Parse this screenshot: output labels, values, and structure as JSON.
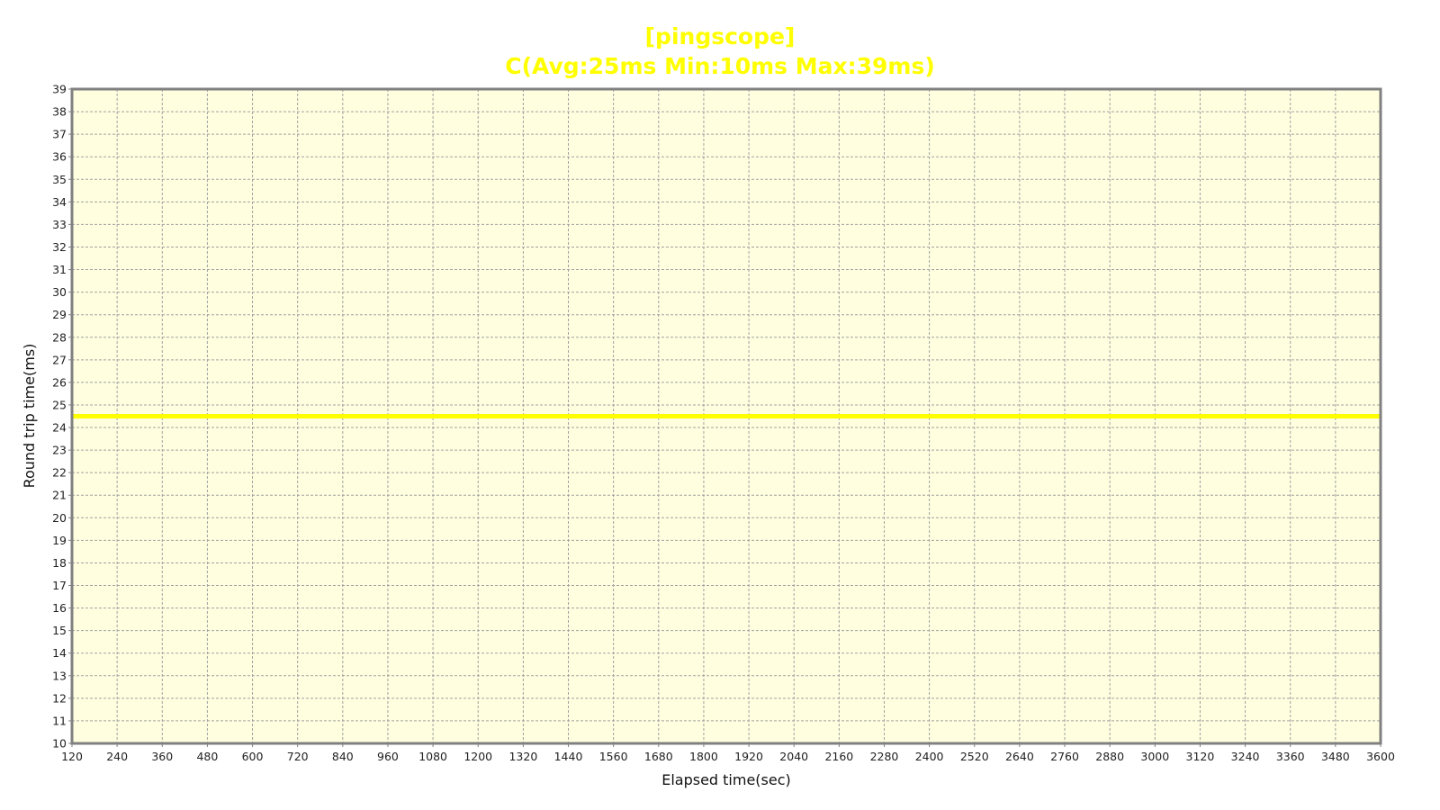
{
  "chart_data": {
    "type": "line",
    "title": "[pingscope]",
    "subtitle": "C(Avg:25ms Min:10ms Max:39ms)",
    "xlabel": "Elapsed time(sec)",
    "ylabel": "Round trip time(ms)",
    "xlim": [
      120,
      3600
    ],
    "ylim": [
      10,
      39
    ],
    "x_ticks": [
      "120",
      "240",
      "360",
      "480",
      "600",
      "720",
      "840",
      "960",
      "1080",
      "1200",
      "1320",
      "1440",
      "1560",
      "1680",
      "1800",
      "1920",
      "2040",
      "2160",
      "2280",
      "2400",
      "2520",
      "2640",
      "2760",
      "2880",
      "3000",
      "3120",
      "3240",
      "3360",
      "3480",
      "3600"
    ],
    "y_ticks": [
      "10",
      "11",
      "12",
      "13",
      "14",
      "15",
      "16",
      "17",
      "18",
      "19",
      "20",
      "21",
      "22",
      "23",
      "24",
      "25",
      "26",
      "27",
      "28",
      "29",
      "30",
      "31",
      "32",
      "33",
      "34",
      "35",
      "36",
      "37",
      "38",
      "39"
    ],
    "grid": true,
    "series": [
      {
        "color": "#ffff00",
        "x": [
          120,
          3600
        ],
        "y": [
          24.5,
          24.5
        ]
      }
    ]
  },
  "colors": {
    "title": "#ffff00",
    "plot_background": "#ffffe0",
    "grid": "#a0a0a0",
    "frame": "#808080"
  }
}
